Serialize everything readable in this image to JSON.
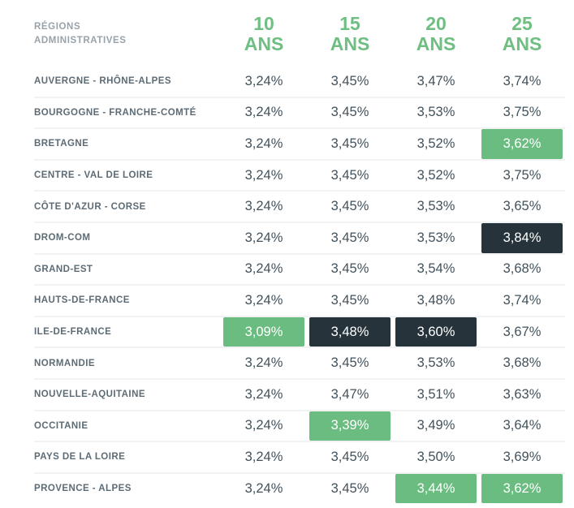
{
  "header": {
    "corner_line1": "RÉGIONS",
    "corner_line2": "ADMINISTRATIVES",
    "columns": [
      {
        "value": "10",
        "unit": "ANS"
      },
      {
        "value": "15",
        "unit": "ANS"
      },
      {
        "value": "20",
        "unit": "ANS"
      },
      {
        "value": "25",
        "unit": "ANS"
      }
    ]
  },
  "colors": {
    "accent_green_header": "#6fbe82",
    "highlight_green": "#6bbc80",
    "highlight_dark": "#26333a",
    "value_text": "#42525c",
    "region_label_text": "#5d6b75",
    "corner_header_text": "#98a2ab",
    "row_separator": "#f1f2f3"
  },
  "chart_data": {
    "type": "table",
    "title": "",
    "columns": [
      "RÉGIONS ADMINISTRATIVES",
      "10 ANS",
      "15 ANS",
      "20 ANS",
      "25 ANS"
    ],
    "highlight_meaning": {
      "green": "lowest-rate-cell",
      "dark": "highest-rate-cell"
    },
    "rows": [
      {
        "region": "AUVERGNE - RHÔNE-ALPES",
        "values": [
          "3,24%",
          "3,45%",
          "3,47%",
          "3,74%"
        ],
        "highlights": [
          null,
          null,
          null,
          null
        ]
      },
      {
        "region": "BOURGOGNE - FRANCHE-COMTÉ",
        "values": [
          "3,24%",
          "3,45%",
          "3,53%",
          "3,75%"
        ],
        "highlights": [
          null,
          null,
          null,
          null
        ]
      },
      {
        "region": "BRETAGNE",
        "values": [
          "3,24%",
          "3,45%",
          "3,52%",
          "3,62%"
        ],
        "highlights": [
          null,
          null,
          null,
          "green"
        ]
      },
      {
        "region": "CENTRE - VAL DE LOIRE",
        "values": [
          "3,24%",
          "3,45%",
          "3,52%",
          "3,75%"
        ],
        "highlights": [
          null,
          null,
          null,
          null
        ]
      },
      {
        "region": "CÔTE D'AZUR - CORSE",
        "values": [
          "3,24%",
          "3,45%",
          "3,53%",
          "3,65%"
        ],
        "highlights": [
          null,
          null,
          null,
          null
        ]
      },
      {
        "region": "DROM-COM",
        "values": [
          "3,24%",
          "3,45%",
          "3,53%",
          "3,84%"
        ],
        "highlights": [
          null,
          null,
          null,
          "dark"
        ]
      },
      {
        "region": "GRAND-EST",
        "values": [
          "3,24%",
          "3,45%",
          "3,54%",
          "3,68%"
        ],
        "highlights": [
          null,
          null,
          null,
          null
        ]
      },
      {
        "region": "HAUTS-DE-FRANCE",
        "values": [
          "3,24%",
          "3,45%",
          "3,48%",
          "3,74%"
        ],
        "highlights": [
          null,
          null,
          null,
          null
        ]
      },
      {
        "region": "ILE-DE-FRANCE",
        "values": [
          "3,09%",
          "3,48%",
          "3,60%",
          "3,67%"
        ],
        "highlights": [
          "green",
          "dark",
          "dark",
          null
        ]
      },
      {
        "region": "NORMANDIE",
        "values": [
          "3,24%",
          "3,45%",
          "3,53%",
          "3,68%"
        ],
        "highlights": [
          null,
          null,
          null,
          null
        ]
      },
      {
        "region": "NOUVELLE-AQUITAINE",
        "values": [
          "3,24%",
          "3,47%",
          "3,51%",
          "3,63%"
        ],
        "highlights": [
          null,
          null,
          null,
          null
        ]
      },
      {
        "region": "OCCITANIE",
        "values": [
          "3,24%",
          "3,39%",
          "3,49%",
          "3,64%"
        ],
        "highlights": [
          null,
          "green",
          null,
          null
        ]
      },
      {
        "region": "PAYS DE LA LOIRE",
        "values": [
          "3,24%",
          "3,45%",
          "3,50%",
          "3,69%"
        ],
        "highlights": [
          null,
          null,
          null,
          null
        ]
      },
      {
        "region": "PROVENCE - ALPES",
        "values": [
          "3,24%",
          "3,45%",
          "3,44%",
          "3,62%"
        ],
        "highlights": [
          null,
          null,
          "green",
          "green"
        ]
      }
    ]
  }
}
